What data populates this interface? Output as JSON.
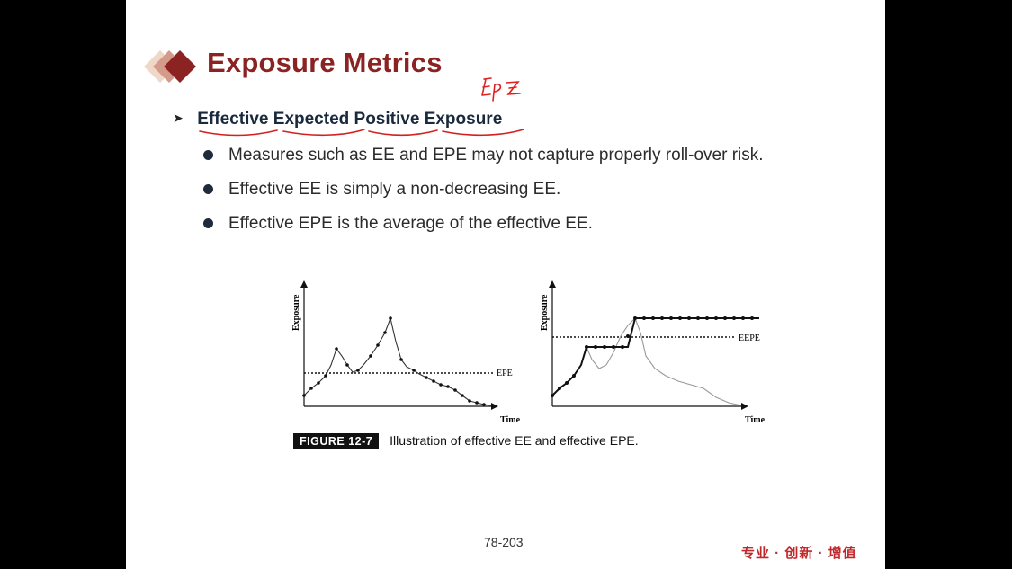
{
  "slide": {
    "title": "Exposure Metrics",
    "handwritten_note": "EPE",
    "subheading": {
      "words": [
        "Effective",
        "Expected",
        "Positive",
        "Exposure"
      ]
    },
    "bullets": [
      "Measures such as EE and EPE may not capture properly roll-over risk.",
      "Effective EE is simply a non-decreasing EE.",
      "Effective EPE is the average of the effective EE."
    ],
    "figure": {
      "tag": "FIGURE 12-7",
      "caption": "Illustration of effective EE and effective EPE.",
      "left_panel": {
        "ylabel": "Exposure",
        "xlabel": "Time",
        "line_label": "EPE"
      },
      "right_panel": {
        "ylabel": "Exposure",
        "xlabel": "Time",
        "line_label": "EEPE"
      }
    },
    "page_number": "78-203",
    "slogan": "专业 · 创新 · 增值",
    "colors": {
      "title": "#8b2323",
      "accent": "#c0282b",
      "underline": "#d42020"
    }
  }
}
